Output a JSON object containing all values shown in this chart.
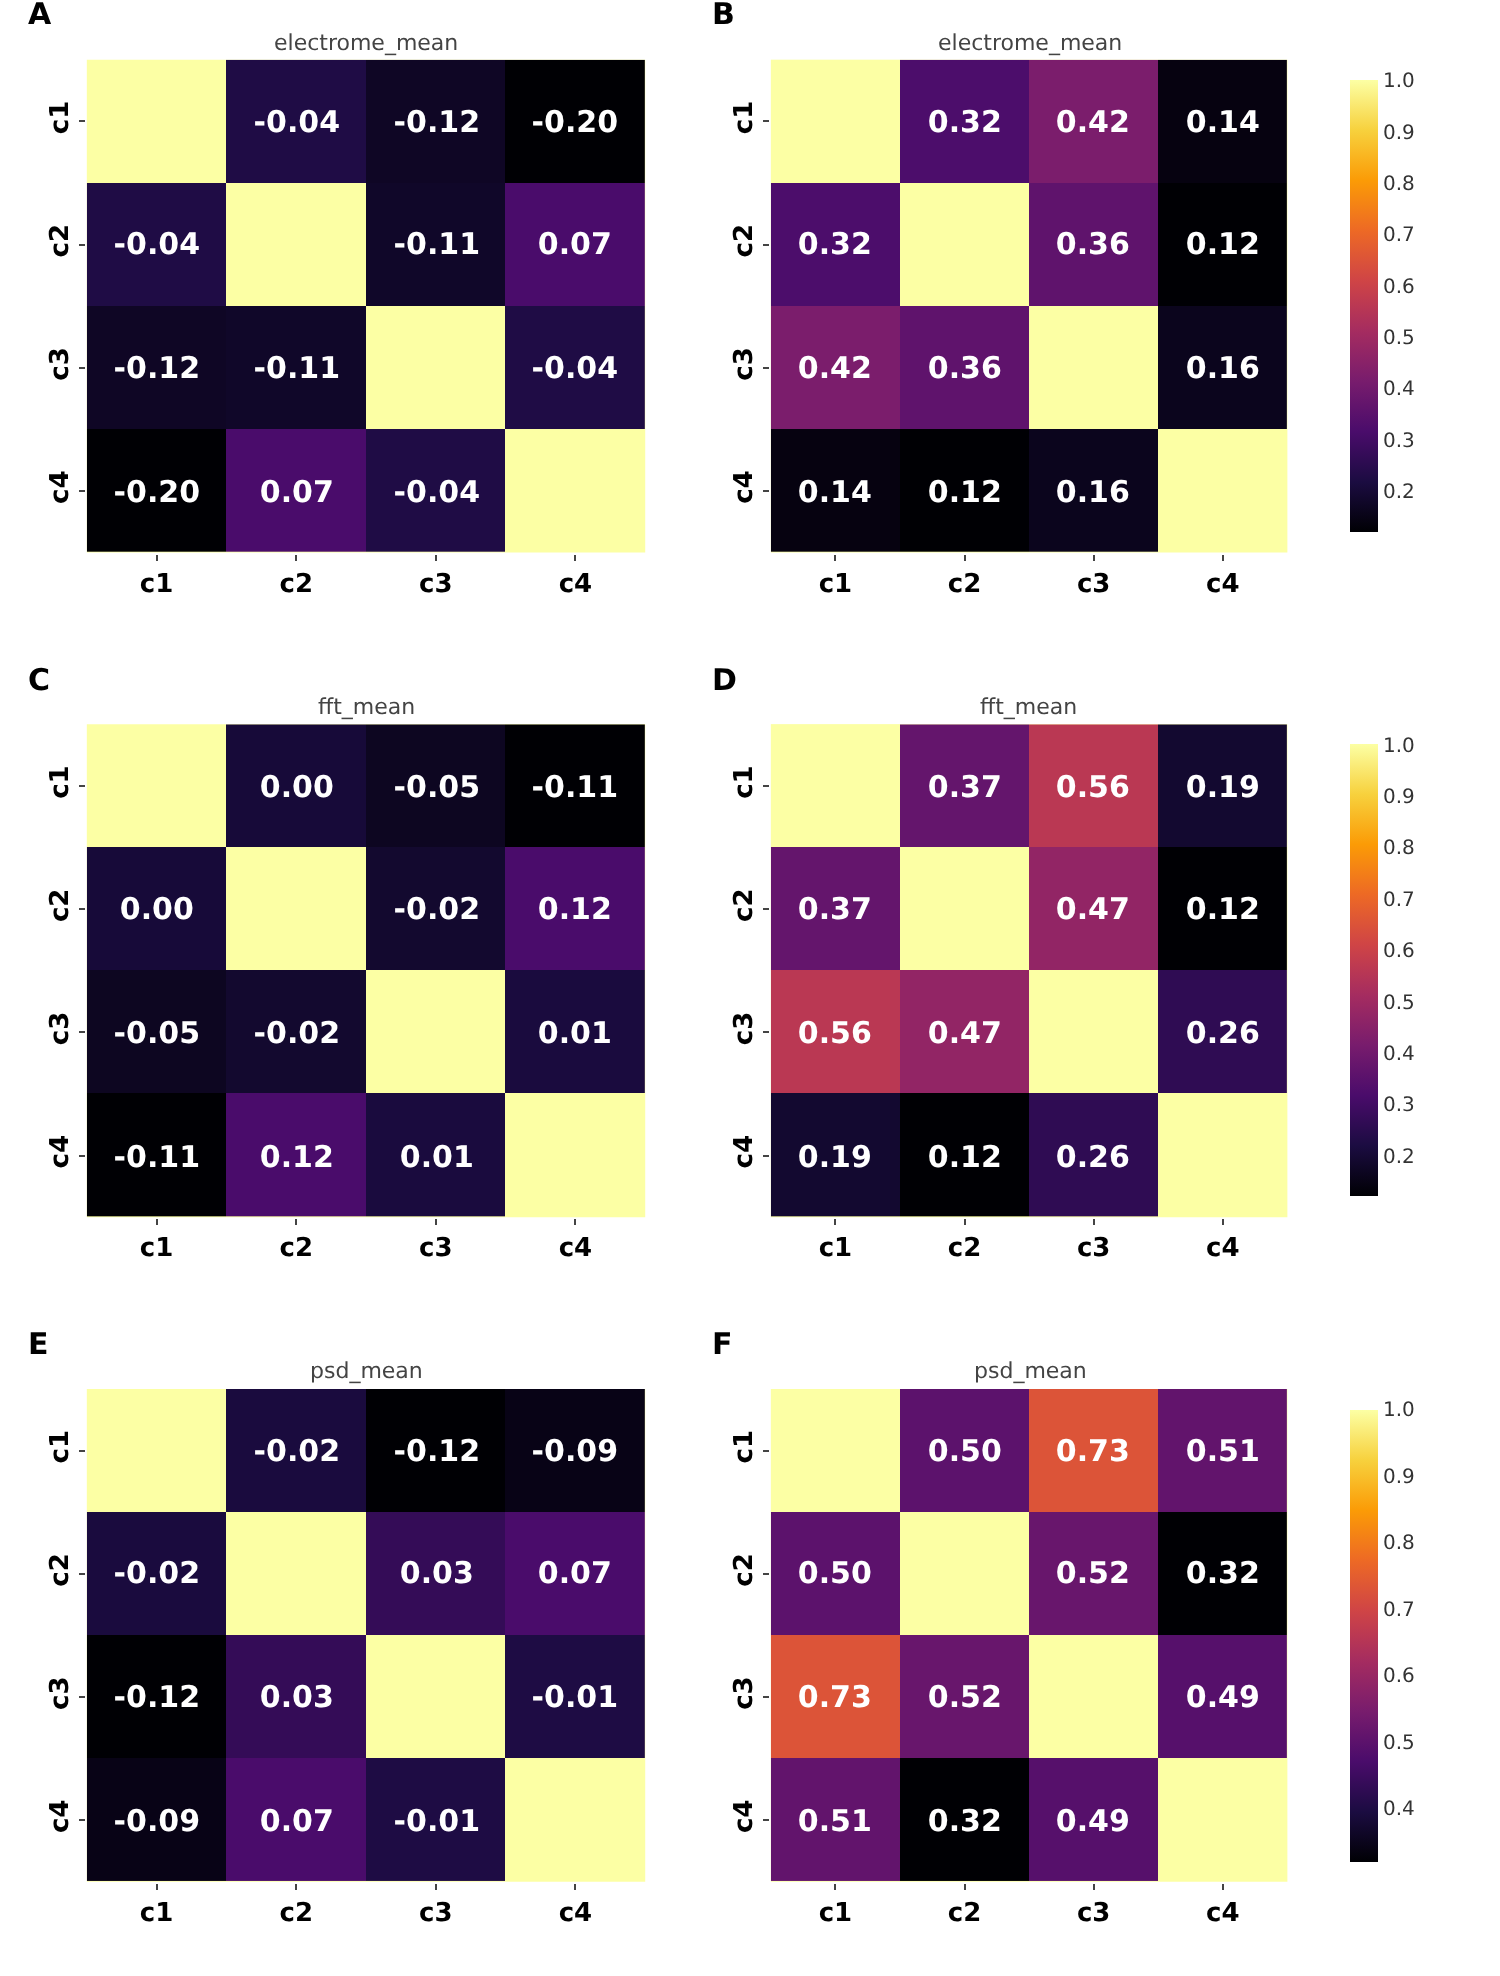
{
  "chart_data": [
    {
      "type": "heatmap",
      "title": "electrome_mean",
      "annotations": [
        "A"
      ],
      "categories": [
        "c1",
        "c2",
        "c3",
        "c4"
      ],
      "y_categories": [
        "c1",
        "c2",
        "c3",
        "c4"
      ],
      "cells": [
        [
          null,
          -0.04,
          -0.12,
          -0.2
        ],
        [
          -0.04,
          null,
          -0.11,
          0.07
        ],
        [
          -0.12,
          -0.11,
          null,
          -0.04
        ],
        [
          -0.2,
          0.07,
          -0.04,
          null
        ]
      ],
      "cell_labels": [
        [
          null,
          "-0.04",
          "-0.12",
          "-0.20"
        ],
        [
          "-0.04",
          null,
          "-0.11",
          "0.07"
        ],
        [
          "-0.12",
          "-0.11",
          null,
          "-0.04"
        ],
        [
          "-0.20",
          "0.07",
          "-0.04",
          null
        ]
      ]
    },
    {
      "type": "heatmap",
      "title": "electrome_mean",
      "annotations": [
        "B"
      ],
      "categories": [
        "c1",
        "c2",
        "c3",
        "c4"
      ],
      "y_categories": [
        "c1",
        "c2",
        "c3",
        "c4"
      ],
      "cells": [
        [
          1,
          0.32,
          0.42,
          0.14
        ],
        [
          0.32,
          1,
          0.36,
          0.12
        ],
        [
          0.42,
          0.36,
          1,
          0.16
        ],
        [
          0.14,
          0.12,
          0.16,
          1
        ]
      ],
      "cell_labels": [
        [
          null,
          "0.32",
          "0.42",
          "0.14"
        ],
        [
          "0.32",
          null,
          "0.36",
          "0.12"
        ],
        [
          "0.42",
          "0.36",
          null,
          "0.16"
        ],
        [
          "0.14",
          "0.12",
          "0.16",
          null
        ]
      ],
      "clim": [
        0.12,
        1.0
      ],
      "cticks": [
        {
          "value": 0.2,
          "label": "0.2"
        },
        {
          "value": 0.3,
          "label": "0.3"
        },
        {
          "value": 0.4,
          "label": "0.4"
        },
        {
          "value": 0.5,
          "label": "0.5"
        },
        {
          "value": 0.6,
          "label": "0.6"
        },
        {
          "value": 0.7,
          "label": "0.7"
        },
        {
          "value": 0.8,
          "label": "0.8"
        },
        {
          "value": 0.9,
          "label": "0.9"
        },
        {
          "value": 1.0,
          "label": "1.0"
        }
      ]
    },
    {
      "type": "heatmap",
      "title": "fft_mean",
      "annotations": [
        "C"
      ],
      "categories": [
        "c1",
        "c2",
        "c3",
        "c4"
      ],
      "y_categories": [
        "c1",
        "c2",
        "c3",
        "c4"
      ],
      "cells": [
        [
          null,
          0.0,
          -0.05,
          -0.11
        ],
        [
          0.0,
          null,
          -0.02,
          0.12
        ],
        [
          -0.05,
          -0.02,
          null,
          0.01
        ],
        [
          -0.11,
          0.12,
          0.01,
          null
        ]
      ],
      "cell_labels": [
        [
          null,
          "0.00",
          "-0.05",
          "-0.11"
        ],
        [
          "0.00",
          null,
          "-0.02",
          "0.12"
        ],
        [
          "-0.05",
          "-0.02",
          null,
          "0.01"
        ],
        [
          "-0.11",
          "0.12",
          "0.01",
          null
        ]
      ]
    },
    {
      "type": "heatmap",
      "title": "fft_mean",
      "annotations": [
        "D"
      ],
      "categories": [
        "c1",
        "c2",
        "c3",
        "c4"
      ],
      "y_categories": [
        "c1",
        "c2",
        "c3",
        "c4"
      ],
      "cells": [
        [
          1,
          0.37,
          0.56,
          0.19
        ],
        [
          0.37,
          1,
          0.47,
          0.12
        ],
        [
          0.56,
          0.47,
          1,
          0.26
        ],
        [
          0.19,
          0.12,
          0.26,
          1
        ]
      ],
      "cell_labels": [
        [
          null,
          "0.37",
          "0.56",
          "0.19"
        ],
        [
          "0.37",
          null,
          "0.47",
          "0.12"
        ],
        [
          "0.56",
          "0.47",
          null,
          "0.26"
        ],
        [
          "0.19",
          "0.12",
          "0.26",
          null
        ]
      ],
      "clim": [
        0.12,
        1.0
      ],
      "cticks": [
        {
          "value": 0.2,
          "label": "0.2"
        },
        {
          "value": 0.3,
          "label": "0.3"
        },
        {
          "value": 0.4,
          "label": "0.4"
        },
        {
          "value": 0.5,
          "label": "0.5"
        },
        {
          "value": 0.6,
          "label": "0.6"
        },
        {
          "value": 0.7,
          "label": "0.7"
        },
        {
          "value": 0.8,
          "label": "0.8"
        },
        {
          "value": 0.9,
          "label": "0.9"
        },
        {
          "value": 1.0,
          "label": "1.0"
        }
      ]
    },
    {
      "type": "heatmap",
      "title": "psd_mean",
      "annotations": [
        "E"
      ],
      "categories": [
        "c1",
        "c2",
        "c3",
        "c4"
      ],
      "y_categories": [
        "c1",
        "c2",
        "c3",
        "c4"
      ],
      "cells": [
        [
          null,
          -0.02,
          -0.12,
          -0.09
        ],
        [
          -0.02,
          null,
          0.03,
          0.07
        ],
        [
          -0.12,
          0.03,
          null,
          -0.01
        ],
        [
          -0.09,
          0.07,
          -0.01,
          null
        ]
      ],
      "cell_labels": [
        [
          null,
          "-0.02",
          "-0.12",
          "-0.09"
        ],
        [
          "-0.02",
          null,
          "0.03",
          "0.07"
        ],
        [
          "-0.12",
          "0.03",
          null,
          "-0.01"
        ],
        [
          "-0.09",
          "0.07",
          "-0.01",
          null
        ]
      ]
    },
    {
      "type": "heatmap",
      "title": "psd_mean",
      "annotations": [
        "F"
      ],
      "categories": [
        "c1",
        "c2",
        "c3",
        "c4"
      ],
      "y_categories": [
        "c1",
        "c2",
        "c3",
        "c4"
      ],
      "cells": [
        [
          1,
          0.5,
          0.73,
          0.51
        ],
        [
          0.5,
          1,
          0.52,
          0.32
        ],
        [
          0.73,
          0.52,
          1,
          0.49
        ],
        [
          0.51,
          0.32,
          0.49,
          1
        ]
      ],
      "cell_labels": [
        [
          null,
          "0.50",
          "0.73",
          "0.51"
        ],
        [
          "0.50",
          null,
          "0.52",
          "0.32"
        ],
        [
          "0.73",
          "0.52",
          null,
          "0.49"
        ],
        [
          "0.51",
          "0.32",
          "0.49",
          null
        ]
      ],
      "clim": [
        0.32,
        1.0
      ],
      "cticks": [
        {
          "value": 0.4,
          "label": "0.4"
        },
        {
          "value": 0.5,
          "label": "0.5"
        },
        {
          "value": 0.6,
          "label": "0.6"
        },
        {
          "value": 0.7,
          "label": "0.7"
        },
        {
          "value": 0.8,
          "label": "0.8"
        },
        {
          "value": 0.9,
          "label": "0.9"
        },
        {
          "value": 1.0,
          "label": "1.0"
        }
      ]
    }
  ]
}
